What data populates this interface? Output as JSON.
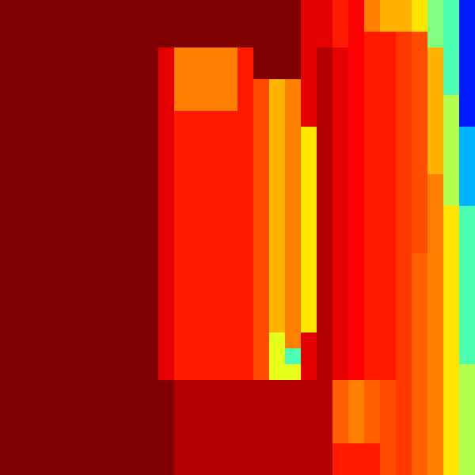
{
  "chart_data": {
    "type": "heatmap",
    "tick_labels": false,
    "cells": [
      [
        1,
        1,
        1,
        1,
        1,
        1,
        1,
        1,
        1,
        1,
        1,
        1,
        1,
        1,
        1,
        1,
        1,
        1,
        1,
        0.9,
        0.9,
        0.85,
        0.88,
        0.75,
        0.7,
        0.7,
        0.65,
        0.5,
        0.45,
        0.15
      ],
      [
        1,
        1,
        1,
        1,
        1,
        1,
        1,
        1,
        1,
        1,
        1,
        1,
        1,
        1,
        1,
        1,
        1,
        1,
        1,
        0.9,
        0.9,
        0.85,
        0.88,
        0.75,
        0.7,
        0.7,
        0.65,
        0.5,
        0.45,
        0.15
      ],
      [
        1,
        1,
        1,
        1,
        1,
        1,
        1,
        1,
        1,
        1,
        1,
        1,
        1,
        1,
        1,
        1,
        1,
        1,
        1,
        0.9,
        0.9,
        0.85,
        0.88,
        0.85,
        0.85,
        0.82,
        0.8,
        0.5,
        0.45,
        0.15
      ],
      [
        1,
        1,
        1,
        1,
        1,
        1,
        1,
        1,
        1,
        1,
        0.9,
        0.75,
        0.75,
        0.75,
        0.75,
        0.85,
        1,
        1,
        1,
        0.9,
        0.95,
        0.9,
        0.88,
        0.85,
        0.85,
        0.82,
        0.8,
        0.7,
        0.45,
        0.15
      ],
      [
        1,
        1,
        1,
        1,
        1,
        1,
        1,
        1,
        1,
        1,
        0.9,
        0.75,
        0.75,
        0.75,
        0.75,
        0.85,
        1,
        1,
        1,
        0.9,
        0.95,
        0.9,
        0.88,
        0.85,
        0.85,
        0.82,
        0.8,
        0.7,
        0.45,
        0.15
      ],
      [
        1,
        1,
        1,
        1,
        1,
        1,
        1,
        1,
        1,
        1,
        0.9,
        0.75,
        0.75,
        0.75,
        0.75,
        0.85,
        0.8,
        0.7,
        0.75,
        0.9,
        0.95,
        0.9,
        0.88,
        0.85,
        0.85,
        0.82,
        0.8,
        0.7,
        0.45,
        0.15
      ],
      [
        1,
        1,
        1,
        1,
        1,
        1,
        1,
        1,
        1,
        1,
        0.9,
        0.75,
        0.75,
        0.75,
        0.75,
        0.85,
        0.8,
        0.7,
        0.75,
        0.9,
        0.95,
        0.9,
        0.88,
        0.85,
        0.85,
        0.82,
        0.8,
        0.7,
        0.55,
        0.15
      ],
      [
        1,
        1,
        1,
        1,
        1,
        1,
        1,
        1,
        1,
        1,
        0.9,
        0.85,
        0.85,
        0.85,
        0.85,
        0.85,
        0.8,
        0.7,
        0.75,
        0.9,
        0.95,
        0.9,
        0.88,
        0.85,
        0.85,
        0.82,
        0.8,
        0.7,
        0.55,
        0.15
      ],
      [
        1,
        1,
        1,
        1,
        1,
        1,
        1,
        1,
        1,
        1,
        0.9,
        0.85,
        0.85,
        0.85,
        0.85,
        0.85,
        0.8,
        0.7,
        0.75,
        0.65,
        0.95,
        0.9,
        0.88,
        0.85,
        0.85,
        0.82,
        0.8,
        0.7,
        0.55,
        0.3
      ],
      [
        1,
        1,
        1,
        1,
        1,
        1,
        1,
        1,
        1,
        1,
        0.9,
        0.85,
        0.85,
        0.85,
        0.85,
        0.85,
        0.8,
        0.7,
        0.75,
        0.65,
        0.95,
        0.9,
        0.88,
        0.85,
        0.85,
        0.82,
        0.8,
        0.7,
        0.55,
        0.3
      ],
      [
        1,
        1,
        1,
        1,
        1,
        1,
        1,
        1,
        1,
        1,
        0.9,
        0.85,
        0.85,
        0.85,
        0.85,
        0.85,
        0.8,
        0.7,
        0.75,
        0.65,
        0.95,
        0.9,
        0.88,
        0.85,
        0.85,
        0.82,
        0.8,
        0.7,
        0.55,
        0.3
      ],
      [
        1,
        1,
        1,
        1,
        1,
        1,
        1,
        1,
        1,
        1,
        0.9,
        0.85,
        0.85,
        0.85,
        0.85,
        0.85,
        0.8,
        0.7,
        0.75,
        0.65,
        0.95,
        0.9,
        0.88,
        0.85,
        0.85,
        0.82,
        0.8,
        0.75,
        0.55,
        0.3
      ],
      [
        1,
        1,
        1,
        1,
        1,
        1,
        1,
        1,
        1,
        1,
        0.9,
        0.85,
        0.85,
        0.85,
        0.85,
        0.85,
        0.8,
        0.7,
        0.75,
        0.65,
        0.95,
        0.9,
        0.88,
        0.85,
        0.85,
        0.82,
        0.8,
        0.75,
        0.55,
        0.3
      ],
      [
        1,
        1,
        1,
        1,
        1,
        1,
        1,
        1,
        1,
        1,
        0.9,
        0.85,
        0.85,
        0.85,
        0.85,
        0.85,
        0.8,
        0.7,
        0.75,
        0.65,
        0.95,
        0.9,
        0.88,
        0.85,
        0.85,
        0.82,
        0.8,
        0.75,
        0.65,
        0.45
      ],
      [
        1,
        1,
        1,
        1,
        1,
        1,
        1,
        1,
        1,
        1,
        0.9,
        0.85,
        0.85,
        0.85,
        0.85,
        0.85,
        0.8,
        0.7,
        0.75,
        0.65,
        0.95,
        0.9,
        0.88,
        0.85,
        0.85,
        0.82,
        0.8,
        0.75,
        0.65,
        0.45
      ],
      [
        1,
        1,
        1,
        1,
        1,
        1,
        1,
        1,
        1,
        1,
        0.9,
        0.85,
        0.85,
        0.85,
        0.85,
        0.85,
        0.8,
        0.7,
        0.75,
        0.65,
        0.95,
        0.9,
        0.88,
        0.85,
        0.85,
        0.82,
        0.8,
        0.75,
        0.65,
        0.45
      ],
      [
        1,
        1,
        1,
        1,
        1,
        1,
        1,
        1,
        1,
        1,
        0.9,
        0.85,
        0.85,
        0.85,
        0.85,
        0.85,
        0.8,
        0.7,
        0.75,
        0.65,
        0.95,
        0.9,
        0.88,
        0.85,
        0.85,
        0.82,
        0.78,
        0.75,
        0.65,
        0.45
      ],
      [
        1,
        1,
        1,
        1,
        1,
        1,
        1,
        1,
        1,
        1,
        0.9,
        0.85,
        0.85,
        0.85,
        0.85,
        0.85,
        0.8,
        0.7,
        0.75,
        0.65,
        0.95,
        0.9,
        0.88,
        0.85,
        0.85,
        0.82,
        0.78,
        0.75,
        0.65,
        0.45
      ],
      [
        1,
        1,
        1,
        1,
        1,
        1,
        1,
        1,
        1,
        1,
        0.9,
        0.85,
        0.85,
        0.85,
        0.85,
        0.85,
        0.8,
        0.7,
        0.75,
        0.65,
        0.95,
        0.9,
        0.88,
        0.85,
        0.85,
        0.82,
        0.78,
        0.75,
        0.65,
        0.45
      ],
      [
        1,
        1,
        1,
        1,
        1,
        1,
        1,
        1,
        1,
        1,
        0.9,
        0.85,
        0.85,
        0.85,
        0.85,
        0.85,
        0.8,
        0.7,
        0.75,
        0.65,
        0.95,
        0.9,
        0.88,
        0.85,
        0.85,
        0.82,
        0.78,
        0.75,
        0.65,
        0.45
      ],
      [
        1,
        1,
        1,
        1,
        1,
        1,
        1,
        1,
        1,
        1,
        0.9,
        0.85,
        0.85,
        0.85,
        0.85,
        0.85,
        0.8,
        0.7,
        0.75,
        0.65,
        0.95,
        0.9,
        0.88,
        0.85,
        0.85,
        0.82,
        0.78,
        0.75,
        0.65,
        0.45
      ],
      [
        1,
        1,
        1,
        1,
        1,
        1,
        1,
        1,
        1,
        1,
        0.9,
        0.85,
        0.85,
        0.85,
        0.85,
        0.85,
        0.8,
        0.6,
        0.75,
        0.9,
        0.95,
        0.9,
        0.88,
        0.85,
        0.85,
        0.82,
        0.78,
        0.75,
        0.65,
        0.45
      ],
      [
        1,
        1,
        1,
        1,
        1,
        1,
        1,
        1,
        1,
        1,
        0.9,
        0.85,
        0.85,
        0.85,
        0.85,
        0.85,
        0.8,
        0.6,
        0.45,
        0.9,
        0.95,
        0.9,
        0.88,
        0.85,
        0.85,
        0.82,
        0.78,
        0.75,
        0.65,
        0.45
      ],
      [
        1,
        1,
        1,
        1,
        1,
        1,
        1,
        1,
        1,
        1,
        0.9,
        0.85,
        0.85,
        0.85,
        0.85,
        0.85,
        0.8,
        0.6,
        0.6,
        0.9,
        0.95,
        0.9,
        0.88,
        0.85,
        0.85,
        0.82,
        0.78,
        0.75,
        0.65,
        0.55
      ],
      [
        1,
        1,
        1,
        1,
        1,
        1,
        1,
        1,
        1,
        1,
        1,
        0.95,
        0.95,
        0.95,
        0.95,
        0.95,
        0.95,
        0.95,
        0.95,
        0.95,
        0.95,
        0.78,
        0.75,
        0.78,
        0.8,
        0.82,
        0.78,
        0.75,
        0.65,
        0.55
      ],
      [
        1,
        1,
        1,
        1,
        1,
        1,
        1,
        1,
        1,
        1,
        1,
        0.95,
        0.95,
        0.95,
        0.95,
        0.95,
        0.95,
        0.95,
        0.95,
        0.95,
        0.95,
        0.78,
        0.75,
        0.78,
        0.8,
        0.82,
        0.78,
        0.75,
        0.65,
        0.55
      ],
      [
        1,
        1,
        1,
        1,
        1,
        1,
        1,
        1,
        1,
        1,
        1,
        0.95,
        0.95,
        0.95,
        0.95,
        0.95,
        0.95,
        0.95,
        0.95,
        0.95,
        0.95,
        0.78,
        0.75,
        0.78,
        0.8,
        0.82,
        0.78,
        0.75,
        0.65,
        0.55
      ],
      [
        1,
        1,
        1,
        1,
        1,
        1,
        1,
        1,
        1,
        1,
        1,
        0.95,
        0.95,
        0.95,
        0.95,
        0.95,
        0.95,
        0.95,
        0.95,
        0.95,
        0.95,
        0.78,
        0.75,
        0.78,
        0.8,
        0.82,
        0.78,
        0.75,
        0.65,
        0.55
      ],
      [
        1,
        1,
        1,
        1,
        1,
        1,
        1,
        1,
        1,
        1,
        1,
        0.95,
        0.95,
        0.95,
        0.95,
        0.95,
        0.95,
        0.95,
        0.95,
        0.95,
        0.95,
        0.85,
        0.85,
        0.85,
        0.8,
        0.82,
        0.78,
        0.75,
        0.65,
        0.55
      ],
      [
        1,
        1,
        1,
        1,
        1,
        1,
        1,
        1,
        1,
        1,
        1,
        0.95,
        0.95,
        0.95,
        0.95,
        0.95,
        0.95,
        0.95,
        0.95,
        0.95,
        0.95,
        0.85,
        0.85,
        0.85,
        0.8,
        0.82,
        0.78,
        0.75,
        0.65,
        0.55
      ]
    ]
  }
}
